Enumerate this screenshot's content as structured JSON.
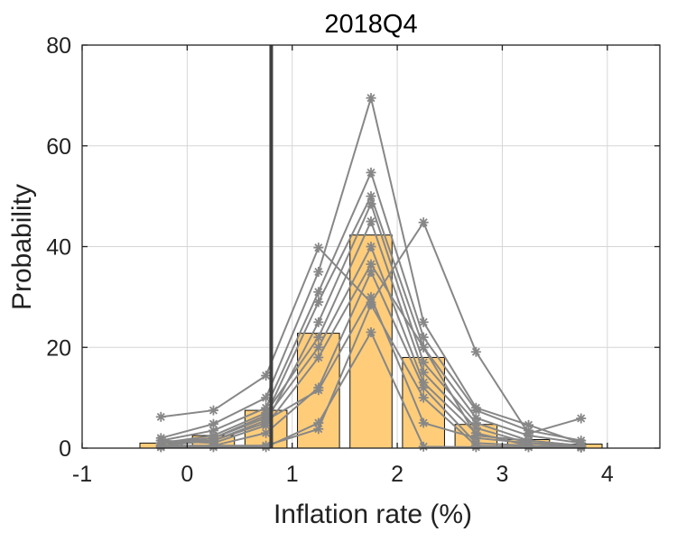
{
  "chart_data": {
    "type": "bar",
    "title": "2018Q4",
    "xlabel": "Inflation rate (%)",
    "ylabel": "Probability",
    "xlim": [
      -1,
      4.5
    ],
    "ylim": [
      0,
      80
    ],
    "xticks": [
      -1,
      0,
      1,
      2,
      3,
      4
    ],
    "yticks": [
      0,
      20,
      40,
      60,
      80
    ],
    "grid": true,
    "bar_color": "#FFCD7A",
    "line_color": "#878787",
    "reference_line_color": "#404040",
    "bar_width": 0.4,
    "categories": [
      -0.25,
      0.25,
      0.75,
      1.25,
      1.75,
      2.25,
      2.75,
      3.25,
      3.75
    ],
    "values": [
      1.0,
      2.5,
      7.5,
      22.8,
      42.3,
      18.0,
      4.7,
      1.7,
      0.8
    ],
    "reference_line_x": 0.8,
    "series": [
      {
        "values": [
          6.2,
          7.5,
          14.4,
          39.8,
          28.9,
          44.8,
          19.1,
          2.9,
          5.9
        ]
      },
      {
        "values": [
          2.0,
          4.8,
          10.0,
          35.0,
          69.5,
          25.0,
          8.0,
          4.6,
          1.0
        ]
      },
      {
        "values": [
          1.5,
          3.5,
          8.0,
          31.0,
          54.7,
          22.0,
          7.5,
          3.5,
          1.5
        ]
      },
      {
        "values": [
          1.0,
          2.0,
          6.5,
          29.0,
          50.0,
          20.0,
          6.0,
          2.5,
          1.0
        ]
      },
      {
        "values": [
          0.5,
          1.5,
          5.0,
          25.0,
          48.5,
          17.0,
          5.0,
          1.5,
          0.5
        ]
      },
      {
        "values": [
          1.0,
          2.5,
          7.0,
          22.0,
          45.0,
          15.0,
          4.0,
          1.0,
          0.5
        ]
      },
      {
        "values": [
          0.5,
          2.0,
          6.0,
          20.0,
          40.0,
          13.0,
          3.0,
          0.5,
          0.2
        ]
      },
      {
        "values": [
          1.5,
          1.0,
          4.5,
          18.0,
          36.5,
          20.0,
          2.5,
          1.5,
          0.5
        ]
      },
      {
        "values": [
          0.2,
          0.5,
          3.0,
          12.0,
          35.0,
          12.0,
          1.0,
          0.5,
          0.2
        ]
      },
      {
        "values": [
          1.0,
          1.5,
          5.5,
          11.5,
          30.0,
          5.0,
          2.0,
          1.0,
          0.3
        ]
      },
      {
        "values": [
          0.5,
          0.5,
          0.5,
          3.8,
          28.5,
          10.0,
          0.5,
          0.2,
          0.2
        ]
      },
      {
        "values": [
          0.2,
          0.2,
          0.2,
          5.0,
          23.0,
          0.3,
          0.2,
          0.2,
          0.1
        ]
      }
    ]
  }
}
